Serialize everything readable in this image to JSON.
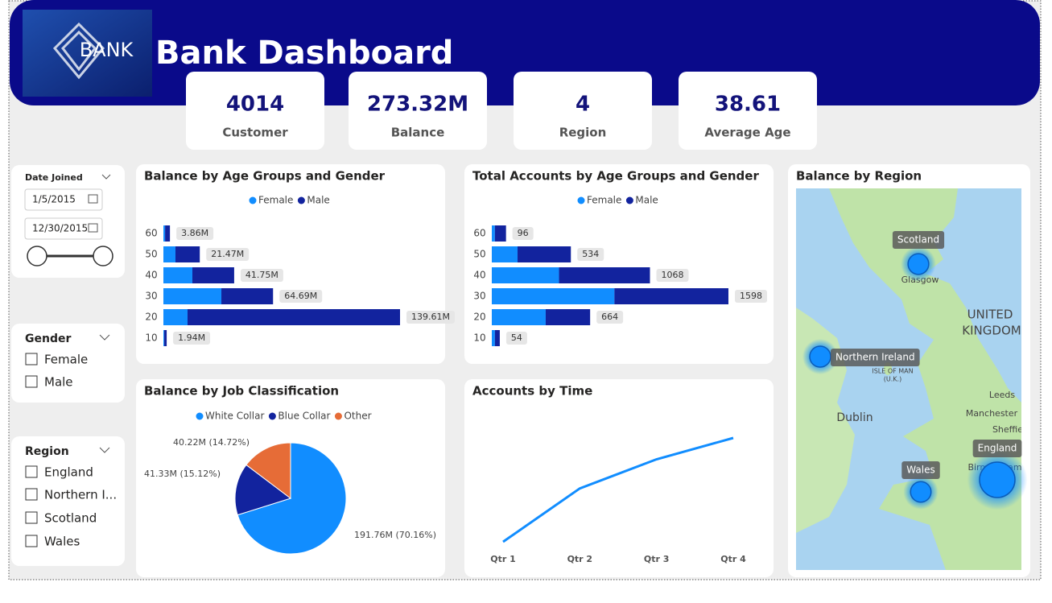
{
  "header": {
    "logo": "BANK",
    "title": "Bank Dashboard"
  },
  "kpis": [
    {
      "value": "4014",
      "label": "Customer"
    },
    {
      "value": "273.32M",
      "label": "Balance"
    },
    {
      "value": "4",
      "label": "Region"
    },
    {
      "value": "38.61",
      "label": "Average Age"
    }
  ],
  "filters": {
    "date": {
      "title": "Date Joined",
      "start": "1/5/2015",
      "end": "12/30/2015"
    },
    "gender": {
      "title": "Gender",
      "options": [
        "Female",
        "Male"
      ]
    },
    "region": {
      "title": "Region",
      "options": [
        "England",
        "Northern I...",
        "Scotland",
        "Wales"
      ]
    }
  },
  "chart_data": [
    {
      "type": "hbar",
      "title": "Balance by Age Groups and Gender",
      "categories": [
        "60",
        "50",
        "40",
        "30",
        "20",
        "10"
      ],
      "series": [
        {
          "name": "Female",
          "color": "#118dff",
          "values": [
            1.0,
            7.12,
            17.1,
            34.2,
            14.25,
            0.5
          ]
        },
        {
          "name": "Male",
          "color": "#12239e",
          "values": [
            2.86,
            14.35,
            24.65,
            30.49,
            125.36,
            1.44
          ]
        }
      ],
      "totals": [
        3.86,
        21.47,
        41.75,
        64.69,
        139.61,
        1.94
      ],
      "total_labels": [
        "3.86M",
        "21.47M",
        "41.75M",
        "64.69M",
        "139.61M",
        "1.94M"
      ]
    },
    {
      "type": "hbar",
      "title": "Total Accounts by Age Groups and Gender",
      "categories": [
        "60",
        "50",
        "40",
        "30",
        "20",
        "10"
      ],
      "series": [
        {
          "name": "Female",
          "color": "#118dff",
          "values": [
            21,
            174,
            454,
            828,
            364,
            21
          ]
        },
        {
          "name": "Male",
          "color": "#12239e",
          "values": [
            75,
            360,
            614,
            770,
            300,
            33
          ]
        }
      ],
      "totals": [
        96,
        534,
        1068,
        1598,
        664,
        54
      ]
    },
    {
      "type": "pie",
      "title": "Balance by Job Classification",
      "categories": [
        "White Collar",
        "Blue Collar",
        "Other"
      ],
      "values": [
        191.76,
        41.33,
        40.22
      ],
      "value_labels": [
        "191.76M (70.16%)",
        "41.33M (15.12%)",
        "40.22M (14.72%)"
      ],
      "colors": [
        "#118dff",
        "#12239e",
        "#e66c37"
      ]
    },
    {
      "type": "line",
      "title": "Accounts by Time",
      "categories": [
        "Qtr 1",
        "Qtr 2",
        "Qtr 3",
        "Qtr 4"
      ],
      "values": [
        880,
        990,
        1050,
        1094
      ],
      "color": "#118dff"
    },
    {
      "type": "map",
      "title": "Balance by Region",
      "categories": [
        "Scotland",
        "Northern Ireland",
        "Wales",
        "England"
      ],
      "values": [
        46,
        47,
        45.32,
        135
      ],
      "color": "#118dff",
      "places": [
        "Glasgow",
        "UNITED",
        "KINGDOM",
        "ISLE OF MAN",
        "(U.K.)",
        "Dublin",
        "Leeds",
        "Manchester",
        "Sheffie",
        "Birmingham"
      ]
    }
  ]
}
